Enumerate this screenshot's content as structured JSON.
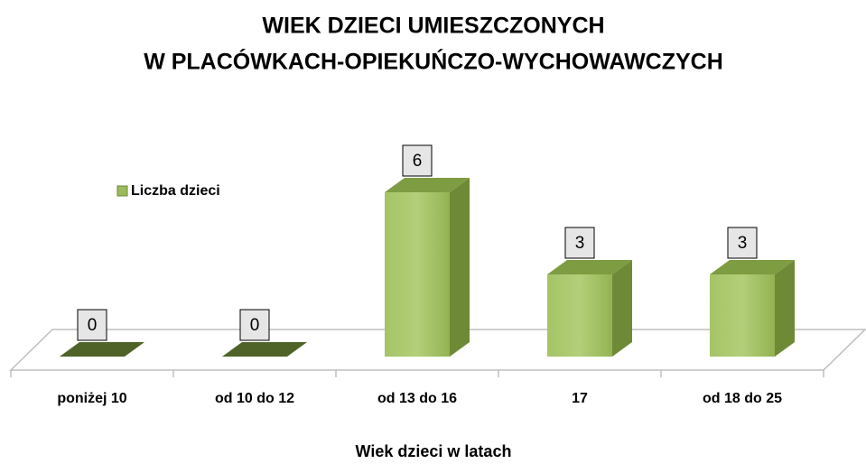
{
  "chart_data": {
    "type": "bar3d",
    "title": [
      "WIEK DZIECI UMIESZCZONYCH",
      "W PLACÓWKACH-OPIEKUŃCZO-WYCHOWAWCZYCH"
    ],
    "x_label": "Wiek dzieci w latach",
    "categories": [
      "poniżej 10",
      "od 10 do 12",
      "od 13 do 16",
      "17",
      "od 18 do 25"
    ],
    "series": [
      {
        "name": "Liczba dzieci",
        "color": "#9bbb59",
        "values": [
          0,
          0,
          6,
          3,
          3
        ]
      }
    ],
    "legend": "left"
  }
}
